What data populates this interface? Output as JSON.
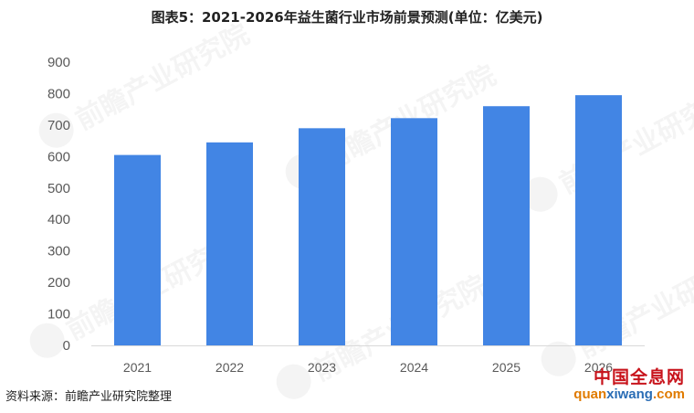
{
  "title": "图表5：2021-2026年益生菌行业市场前景预测(单位：亿美元)",
  "source": "资料来源：前瞻产业研究院整理",
  "watermark_text": "前瞻产业研究院",
  "corner_logo": {
    "name": "中国全息网",
    "url_part1": "quan",
    "url_part2": "xiwang",
    "url_part3": ".com"
  },
  "colors": {
    "bar": "#4285e4",
    "axis": "#d9d9d9",
    "tick_text": "#595959"
  },
  "chart_data": {
    "type": "bar",
    "title": "图表5：2021-2026年益生菌行业市场前景预测(单位：亿美元)",
    "categories": [
      "2021",
      "2022",
      "2023",
      "2024",
      "2025",
      "2026"
    ],
    "values": [
      605,
      645,
      690,
      722,
      760,
      795
    ],
    "ylim": [
      0,
      900
    ],
    "yticks": [
      0,
      100,
      200,
      300,
      400,
      500,
      600,
      700,
      800,
      900
    ],
    "xlabel": "",
    "ylabel": "",
    "grid": false,
    "legend": "none"
  }
}
